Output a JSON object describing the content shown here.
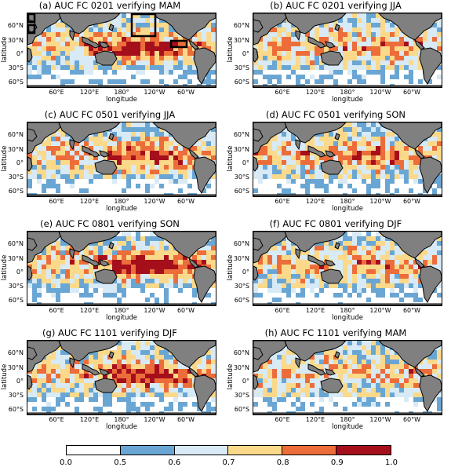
{
  "chart_data": {
    "type": "heatmap",
    "panels": [
      {
        "title": "(a) AUC FC 0201 verifying MAM",
        "boxes": true,
        "bias": 0.25
      },
      {
        "title": "(b) AUC FC 0201 verifying JJA",
        "boxes": false,
        "bias": 0.05
      },
      {
        "title": "(c) AUC FC 0501 verifying JJA",
        "boxes": false,
        "bias": 0.15
      },
      {
        "title": "(d) AUC FC 0501 verifying SON",
        "boxes": false,
        "bias": 0.12
      },
      {
        "title": "(e) AUC FC 0801 verifying SON",
        "boxes": false,
        "bias": 0.3
      },
      {
        "title": "(f) AUC FC 0801 verifying DJF",
        "boxes": false,
        "bias": 0.05
      },
      {
        "title": "(g) AUC FC 1101 verifying DJF",
        "boxes": false,
        "bias": 0.22
      },
      {
        "title": "(h) AUC FC 1101 verifying MAM",
        "boxes": false,
        "bias": 0.0
      }
    ],
    "ylabel": "latitude",
    "xlabel": "longitude",
    "yticks": [
      "60°N",
      "30°N",
      "0°",
      "30°S",
      "60°S"
    ],
    "xticks": [
      "60°E",
      "120°E",
      "180°",
      "120°W",
      "60°W"
    ],
    "colorbar": {
      "ticks": [
        "0.0",
        "0.5",
        "0.6",
        "0.7",
        "0.8",
        "0.9",
        "1.0"
      ],
      "bins": [
        {
          "from": 0.0,
          "to": 0.5,
          "color": "#ffffff"
        },
        {
          "from": 0.5,
          "to": 0.6,
          "color": "#6aa6d3"
        },
        {
          "from": 0.6,
          "to": 0.7,
          "color": "#d7eaf5"
        },
        {
          "from": 0.7,
          "to": 0.8,
          "color": "#fbd98a"
        },
        {
          "from": 0.8,
          "to": 0.9,
          "color": "#ec6d3a"
        },
        {
          "from": 0.9,
          "to": 1.0,
          "color": "#a50f1c"
        }
      ]
    },
    "land_color": "#808080"
  }
}
